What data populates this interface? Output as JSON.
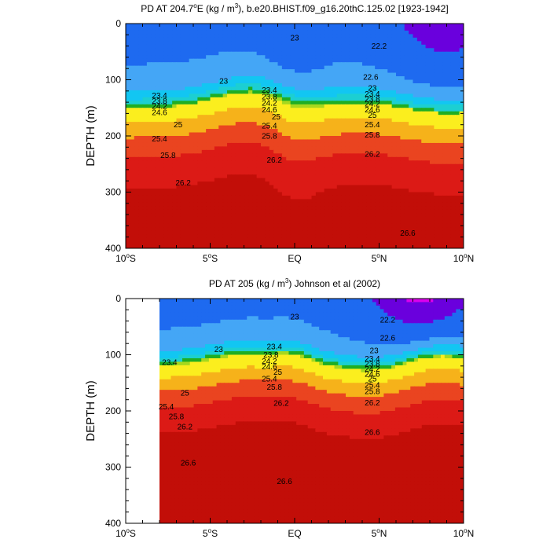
{
  "chart_data": [
    {
      "type": "heatmap",
      "subtype": "filled-contour",
      "title": "PD AT 204.7°E (kg / m³), b.e20.BHIST.f09_g16.20thC.125.02 [1923-1942]",
      "title_parts": {
        "pre": "PD AT 204.7",
        "deg": "o",
        "mid": "E (kg / m",
        "sup": "3",
        "post": "), b.e20.BHIST.f09_g16.20thC.125.02 [1923-1942]"
      },
      "ylabel": "DEPTH (m)",
      "xlabel": "",
      "xlim": [
        -10,
        10
      ],
      "ylim": [
        0,
        400
      ],
      "y_inverted": true,
      "xticks": [
        {
          "value": -10,
          "label": "10",
          "deg": "o",
          "hemi": "S"
        },
        {
          "value": -5,
          "label": "5",
          "deg": "o",
          "hemi": "S"
        },
        {
          "value": 0,
          "label": "EQ",
          "deg": "",
          "hemi": ""
        },
        {
          "value": 5,
          "label": "5",
          "deg": "o",
          "hemi": "N"
        },
        {
          "value": 10,
          "label": "10",
          "deg": "o",
          "hemi": "N"
        }
      ],
      "yticks": [
        "0",
        "100",
        "200",
        "300",
        "400"
      ],
      "data_xmin": -10,
      "contour_labels": [
        {
          "text": "23",
          "x": 0.0,
          "y": 25
        },
        {
          "text": "22.2",
          "x": 5.0,
          "y": 40
        },
        {
          "text": "23",
          "x": -4.2,
          "y": 102
        },
        {
          "text": "22.6",
          "x": 4.5,
          "y": 95
        },
        {
          "text": "23.4",
          "x": -8.0,
          "y": 128
        },
        {
          "text": "23.8",
          "x": -8.0,
          "y": 138
        },
        {
          "text": "24.2",
          "x": -8.0,
          "y": 147
        },
        {
          "text": "24.6",
          "x": -8.0,
          "y": 158
        },
        {
          "text": "23.4",
          "x": -1.5,
          "y": 118
        },
        {
          "text": "23.8",
          "x": -1.5,
          "y": 130
        },
        {
          "text": "24.2",
          "x": -1.5,
          "y": 141
        },
        {
          "text": "24.6",
          "x": -1.5,
          "y": 153
        },
        {
          "text": "25",
          "x": -1.1,
          "y": 166
        },
        {
          "text": "23",
          "x": 4.6,
          "y": 115
        },
        {
          "text": "23.4",
          "x": 4.6,
          "y": 125
        },
        {
          "text": "23.8",
          "x": 4.6,
          "y": 134
        },
        {
          "text": "24.2",
          "x": 4.6,
          "y": 143
        },
        {
          "text": "24.6",
          "x": 4.6,
          "y": 153
        },
        {
          "text": "25",
          "x": 4.6,
          "y": 163
        },
        {
          "text": "25",
          "x": -6.9,
          "y": 180
        },
        {
          "text": "25.4",
          "x": -1.5,
          "y": 182
        },
        {
          "text": "25.4",
          "x": 4.6,
          "y": 180
        },
        {
          "text": "25.4",
          "x": -8.0,
          "y": 205
        },
        {
          "text": "25.8",
          "x": -1.5,
          "y": 200
        },
        {
          "text": "25.8",
          "x": 4.6,
          "y": 198
        },
        {
          "text": "25.8",
          "x": -7.5,
          "y": 234
        },
        {
          "text": "26.2",
          "x": -1.2,
          "y": 243
        },
        {
          "text": "26.2",
          "x": 4.6,
          "y": 232
        },
        {
          "text": "26.2",
          "x": -6.6,
          "y": 283
        },
        {
          "text": "26.6",
          "x": 6.7,
          "y": 373
        }
      ]
    },
    {
      "type": "heatmap",
      "subtype": "filled-contour",
      "title": "PD AT 205 (kg / m³) Johnson et al (2002)",
      "title_parts": {
        "pre": "PD AT 205 (kg / m",
        "sup": "3",
        "post": ") Johnson et al (2002)"
      },
      "ylabel": "DEPTH (m)",
      "xlabel": "",
      "xlim": [
        -10,
        10
      ],
      "ylim": [
        0,
        400
      ],
      "y_inverted": true,
      "xticks": [
        {
          "value": -10,
          "label": "10",
          "deg": "o",
          "hemi": "S"
        },
        {
          "value": -5,
          "label": "5",
          "deg": "o",
          "hemi": "S"
        },
        {
          "value": 0,
          "label": "EQ",
          "deg": "",
          "hemi": ""
        },
        {
          "value": 5,
          "label": "5",
          "deg": "o",
          "hemi": "N"
        },
        {
          "value": 10,
          "label": "10",
          "deg": "o",
          "hemi": "N"
        }
      ],
      "yticks": [
        "0",
        "100",
        "200",
        "300",
        "400"
      ],
      "data_xmin": -8,
      "contour_labels": [
        {
          "text": "23",
          "x": 0.0,
          "y": 32
        },
        {
          "text": "22.2",
          "x": 5.5,
          "y": 38
        },
        {
          "text": "22.6",
          "x": 5.5,
          "y": 70
        },
        {
          "text": "23",
          "x": -4.5,
          "y": 90
        },
        {
          "text": "23.4",
          "x": -1.2,
          "y": 85
        },
        {
          "text": "23.8",
          "x": -1.4,
          "y": 100
        },
        {
          "text": "24.2",
          "x": -1.5,
          "y": 111
        },
        {
          "text": "24.6",
          "x": -1.5,
          "y": 121
        },
        {
          "text": "25",
          "x": -1.0,
          "y": 131
        },
        {
          "text": "23.4",
          "x": -7.4,
          "y": 113
        },
        {
          "text": "23",
          "x": 4.7,
          "y": 92
        },
        {
          "text": "23.4",
          "x": 4.6,
          "y": 107
        },
        {
          "text": "23.8",
          "x": 4.6,
          "y": 116
        },
        {
          "text": "24.2",
          "x": 4.6,
          "y": 125
        },
        {
          "text": "24.6",
          "x": 4.6,
          "y": 134
        },
        {
          "text": "25",
          "x": 4.6,
          "y": 143
        },
        {
          "text": "25.4",
          "x": -1.5,
          "y": 143
        },
        {
          "text": "25.8",
          "x": -1.2,
          "y": 157
        },
        {
          "text": "25.4",
          "x": 4.6,
          "y": 154
        },
        {
          "text": "25.8",
          "x": 4.6,
          "y": 165
        },
        {
          "text": "25",
          "x": -6.5,
          "y": 168
        },
        {
          "text": "25.4",
          "x": -7.6,
          "y": 192
        },
        {
          "text": "25.8",
          "x": -7.0,
          "y": 210
        },
        {
          "text": "26.2",
          "x": -6.5,
          "y": 228
        },
        {
          "text": "26.2",
          "x": -0.8,
          "y": 186
        },
        {
          "text": "26.2",
          "x": 4.6,
          "y": 185
        },
        {
          "text": "26.6",
          "x": 4.6,
          "y": 238
        },
        {
          "text": "26.6",
          "x": -6.3,
          "y": 292
        },
        {
          "text": "26.6",
          "x": -0.6,
          "y": 325
        }
      ]
    }
  ],
  "colors": {
    "levels_sigma": [
      22.2,
      22.6,
      23.0,
      23.4,
      23.8,
      24.2,
      24.6,
      25.0,
      25.4,
      25.8,
      26.2,
      26.6
    ],
    "fills": [
      "#dc00ee",
      "#6a00dd",
      "#0028e6",
      "#1e6af0",
      "#44a6f6",
      "#12c6f2",
      "#1ccfd2",
      "#22cd88",
      "#1fae23",
      "#a6d81e",
      "#fbee1e",
      "#f6b21a",
      "#f07a20",
      "#ea4420",
      "#dc1a16",
      "#c20e08"
    ]
  }
}
